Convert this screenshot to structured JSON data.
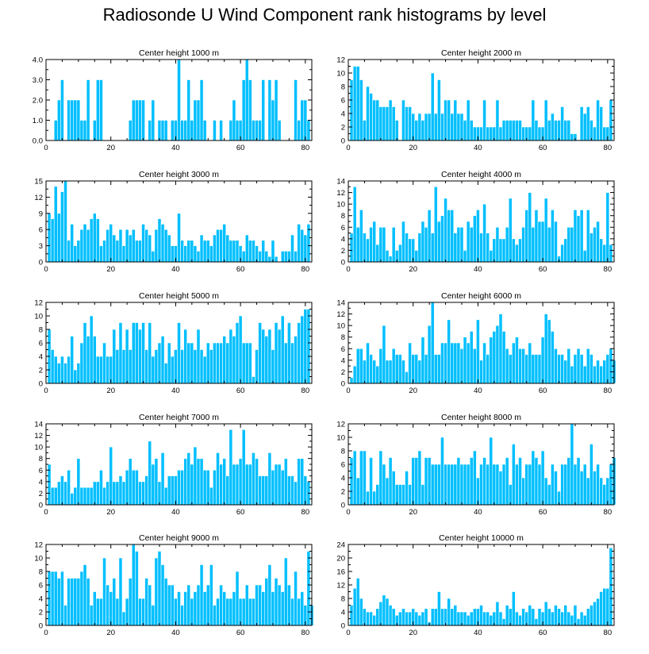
{
  "title": "Radiosonde U Wind Component rank histograms by level",
  "colors": {
    "bar": "#00bfff",
    "bar_edge": "#ffffff",
    "axis": "#000000"
  },
  "chart_data": [
    {
      "type": "bar",
      "title": "Center height 1000 m",
      "xlim": [
        0,
        82
      ],
      "ylim": [
        0,
        4
      ],
      "xticks": [
        0,
        20,
        40,
        60,
        80
      ],
      "xtick_labels": [
        "0",
        "20",
        "40",
        "60",
        "80"
      ],
      "yticks": [
        0,
        1,
        2,
        3,
        4
      ],
      "ytick_labels": [
        "0.0",
        "1.0",
        "2.0",
        "3.0",
        "4.0"
      ],
      "x_start": 1,
      "values": [
        0,
        0,
        1,
        2,
        3,
        0,
        2,
        2,
        2,
        2,
        1,
        1,
        3,
        0,
        1,
        3,
        3,
        0,
        0,
        0,
        0,
        0,
        0,
        0,
        0,
        1,
        2,
        2,
        2,
        2,
        0,
        1,
        2,
        0,
        1,
        1,
        1,
        0,
        1,
        1,
        4,
        1,
        1,
        3,
        1,
        2,
        2,
        3,
        1,
        0,
        0,
        1,
        0,
        1,
        0,
        0,
        1,
        2,
        1,
        1,
        3,
        4,
        3,
        1,
        1,
        1,
        3,
        0,
        3,
        2,
        3,
        1,
        0,
        0,
        0,
        0,
        3,
        1,
        2,
        2,
        1,
        0
      ]
    },
    {
      "type": "bar",
      "title": "Center height 2000 m",
      "xlim": [
        0,
        82
      ],
      "ylim": [
        0,
        12
      ],
      "xticks": [
        0,
        20,
        40,
        60,
        80
      ],
      "xtick_labels": [
        "0",
        "20",
        "40",
        "60",
        "80"
      ],
      "yticks": [
        0,
        2,
        4,
        6,
        8,
        10,
        12
      ],
      "ytick_labels": [
        "0",
        "2",
        "4",
        "6",
        "8",
        "10",
        "12"
      ],
      "x_start": 1,
      "values": [
        9,
        11,
        11,
        9,
        3,
        8,
        7,
        6,
        6,
        5,
        5,
        5,
        6,
        5,
        3,
        0,
        6,
        5,
        5,
        4,
        3,
        4,
        3,
        4,
        4,
        10,
        4,
        9,
        4,
        6,
        6,
        4,
        6,
        4,
        4,
        3,
        6,
        3,
        2,
        2,
        2,
        6,
        2,
        2,
        2,
        6,
        2,
        3,
        3,
        3,
        3,
        3,
        3,
        2,
        2,
        2,
        6,
        3,
        2,
        2,
        6,
        3,
        4,
        3,
        3,
        5,
        3,
        3,
        1,
        1,
        0,
        5,
        4,
        5,
        3,
        2,
        6,
        5,
        2,
        2,
        6,
        0
      ]
    },
    {
      "type": "bar",
      "title": "Center height 3000 m",
      "xlim": [
        0,
        82
      ],
      "ylim": [
        0,
        15
      ],
      "xticks": [
        0,
        20,
        40,
        60,
        80
      ],
      "xtick_labels": [
        "0",
        "20",
        "40",
        "60",
        "80"
      ],
      "yticks": [
        0,
        3,
        6,
        9,
        12,
        15
      ],
      "ytick_labels": [
        "0",
        "3",
        "6",
        "9",
        "12",
        "15"
      ],
      "x_start": 1,
      "values": [
        9,
        8,
        14,
        9,
        13,
        15,
        4,
        7,
        3,
        4,
        6,
        7,
        6,
        8,
        9,
        8,
        3,
        4,
        6,
        7,
        5,
        4,
        6,
        3,
        6,
        5,
        6,
        4,
        4,
        7,
        6,
        5,
        2,
        6,
        8,
        7,
        6,
        5,
        3,
        3,
        9,
        4,
        3,
        4,
        4,
        3,
        2,
        5,
        4,
        4,
        3,
        5,
        6,
        6,
        7,
        5,
        4,
        4,
        4,
        3,
        2,
        5,
        4,
        4,
        3,
        2,
        4,
        2,
        1,
        4,
        1,
        0,
        2,
        2,
        2,
        5,
        2,
        7,
        6,
        5,
        7,
        0
      ]
    },
    {
      "type": "bar",
      "title": "Center height 4000 m",
      "xlim": [
        0,
        82
      ],
      "ylim": [
        0,
        14
      ],
      "xticks": [
        0,
        20,
        40,
        60,
        80
      ],
      "xtick_labels": [
        "0",
        "20",
        "40",
        "60",
        "80"
      ],
      "yticks": [
        0,
        2,
        4,
        6,
        8,
        10,
        12,
        14
      ],
      "ytick_labels": [
        "0",
        "2",
        "4",
        "6",
        "8",
        "10",
        "12",
        "14"
      ],
      "x_start": 1,
      "values": [
        5,
        13,
        6,
        9,
        5,
        4,
        6,
        7,
        3,
        6,
        6,
        2,
        1,
        6,
        2,
        3,
        7,
        5,
        4,
        4,
        2,
        5,
        7,
        6,
        9,
        5,
        13,
        7,
        8,
        11,
        9,
        9,
        5,
        6,
        6,
        2,
        7,
        6,
        8,
        9,
        5,
        10,
        5,
        2,
        4,
        6,
        4,
        4,
        6,
        11,
        4,
        3,
        4,
        6,
        9,
        12,
        6,
        9,
        7,
        7,
        11,
        6,
        9,
        7,
        1,
        3,
        4,
        6,
        6,
        9,
        8,
        9,
        2,
        9,
        5,
        6,
        7,
        4,
        3,
        12,
        3,
        0
      ]
    },
    {
      "type": "bar",
      "title": "Center height 5000 m",
      "xlim": [
        0,
        82
      ],
      "ylim": [
        0,
        12
      ],
      "xticks": [
        0,
        20,
        40,
        60,
        80
      ],
      "xtick_labels": [
        "0",
        "20",
        "40",
        "60",
        "80"
      ],
      "yticks": [
        0,
        2,
        4,
        6,
        8,
        10,
        12
      ],
      "ytick_labels": [
        "0",
        "2",
        "4",
        "6",
        "8",
        "10",
        "12"
      ],
      "x_start": 1,
      "values": [
        8,
        5,
        4,
        3,
        4,
        3,
        4,
        7,
        2,
        3,
        6,
        9,
        7,
        10,
        7,
        4,
        4,
        6,
        4,
        4,
        8,
        5,
        9,
        5,
        8,
        5,
        9,
        9,
        8,
        9,
        5,
        9,
        4,
        5,
        6,
        7,
        3,
        6,
        4,
        5,
        9,
        5,
        8,
        6,
        6,
        5,
        8,
        5,
        4,
        6,
        5,
        6,
        6,
        6,
        7,
        6,
        8,
        7,
        9,
        10,
        6,
        6,
        6,
        1,
        5,
        9,
        8,
        7,
        8,
        5,
        9,
        8,
        10,
        6,
        9,
        6,
        7,
        9,
        10,
        11,
        11,
        0
      ]
    },
    {
      "type": "bar",
      "title": "Center height 6000 m",
      "xlim": [
        0,
        82
      ],
      "ylim": [
        0,
        14
      ],
      "xticks": [
        0,
        20,
        40,
        60,
        80
      ],
      "xtick_labels": [
        "0",
        "20",
        "40",
        "60",
        "80"
      ],
      "yticks": [
        0,
        2,
        4,
        6,
        8,
        10,
        12,
        14
      ],
      "ytick_labels": [
        "0",
        "2",
        "4",
        "6",
        "8",
        "10",
        "12",
        "14"
      ],
      "x_start": 1,
      "values": [
        1,
        3,
        6,
        6,
        4,
        7,
        5,
        4,
        3,
        6,
        10,
        4,
        4,
        6,
        5,
        5,
        4,
        2,
        7,
        5,
        5,
        4,
        8,
        5,
        10,
        14,
        5,
        5,
        7,
        7,
        11,
        7,
        7,
        7,
        6,
        8,
        7,
        9,
        6,
        11,
        4,
        7,
        5,
        8,
        9,
        10,
        12,
        9,
        6,
        5,
        7,
        8,
        6,
        6,
        5,
        7,
        5,
        5,
        5,
        8,
        12,
        11,
        9,
        6,
        5,
        5,
        4,
        6,
        3,
        5,
        6,
        5,
        3,
        6,
        5,
        3,
        4,
        3,
        4,
        5,
        6,
        4
      ]
    },
    {
      "type": "bar",
      "title": "Center height 7000 m",
      "xlim": [
        0,
        82
      ],
      "ylim": [
        0,
        14
      ],
      "xticks": [
        0,
        20,
        40,
        60,
        80
      ],
      "xtick_labels": [
        "0",
        "20",
        "40",
        "60",
        "80"
      ],
      "yticks": [
        0,
        2,
        4,
        6,
        8,
        10,
        12,
        14
      ],
      "ytick_labels": [
        "0",
        "2",
        "4",
        "6",
        "8",
        "10",
        "12",
        "14"
      ],
      "x_start": 1,
      "values": [
        7,
        3,
        3,
        4,
        5,
        4,
        6,
        2,
        3,
        8,
        3,
        3,
        3,
        3,
        4,
        4,
        6,
        3,
        4,
        10,
        4,
        4,
        5,
        4,
        6,
        8,
        6,
        6,
        4,
        4,
        5,
        11,
        7,
        8,
        4,
        9,
        3,
        5,
        5,
        5,
        6,
        6,
        8,
        9,
        7,
        10,
        8,
        8,
        6,
        6,
        3,
        6,
        9,
        7,
        8,
        5,
        13,
        7,
        7,
        8,
        13,
        7,
        7,
        9,
        8,
        5,
        5,
        5,
        9,
        6,
        7,
        7,
        6,
        8,
        5,
        5,
        4,
        8,
        8,
        5,
        4,
        0
      ]
    },
    {
      "type": "bar",
      "title": "Center height 8000 m",
      "xlim": [
        0,
        82
      ],
      "ylim": [
        0,
        12
      ],
      "xticks": [
        0,
        20,
        40,
        60,
        80
      ],
      "xtick_labels": [
        "0",
        "20",
        "40",
        "60",
        "80"
      ],
      "yticks": [
        0,
        2,
        4,
        6,
        8,
        10,
        12
      ],
      "ytick_labels": [
        "0",
        "2",
        "4",
        "6",
        "8",
        "10",
        "12"
      ],
      "x_start": 1,
      "values": [
        7,
        8,
        4,
        8,
        8,
        2,
        7,
        2,
        3,
        8,
        6,
        4,
        7,
        5,
        3,
        3,
        3,
        5,
        3,
        7,
        7,
        8,
        3,
        7,
        7,
        6,
        6,
        6,
        10,
        6,
        6,
        6,
        6,
        7,
        6,
        6,
        6,
        7,
        8,
        4,
        6,
        7,
        6,
        10,
        6,
        6,
        5,
        6,
        7,
        3,
        9,
        6,
        7,
        4,
        6,
        6,
        8,
        7,
        6,
        8,
        4,
        3,
        6,
        5,
        2,
        6,
        6,
        7,
        12,
        6,
        7,
        5,
        6,
        4,
        9,
        5,
        6,
        4,
        3,
        4,
        6,
        7
      ]
    },
    {
      "type": "bar",
      "title": "Center height 9000 m",
      "xlim": [
        0,
        82
      ],
      "ylim": [
        0,
        12
      ],
      "xticks": [
        0,
        20,
        40,
        60,
        80
      ],
      "xtick_labels": [
        "0",
        "20",
        "40",
        "60",
        "80"
      ],
      "yticks": [
        0,
        2,
        4,
        6,
        8,
        10,
        12
      ],
      "ytick_labels": [
        "0",
        "2",
        "4",
        "6",
        "8",
        "10",
        "12"
      ],
      "x_start": 1,
      "values": [
        8,
        8,
        8,
        7,
        8,
        3,
        7,
        7,
        7,
        7,
        8,
        9,
        7,
        3,
        5,
        4,
        4,
        10,
        6,
        5,
        7,
        4,
        10,
        2,
        4,
        7,
        12,
        11,
        4,
        4,
        7,
        6,
        3,
        10,
        11,
        9,
        7,
        6,
        6,
        4,
        5,
        3,
        5,
        6,
        4,
        5,
        6,
        9,
        5,
        6,
        9,
        3,
        4,
        6,
        5,
        4,
        4,
        5,
        8,
        4,
        4,
        6,
        4,
        4,
        6,
        6,
        5,
        7,
        9,
        5,
        7,
        6,
        5,
        10,
        6,
        4,
        8,
        4,
        5,
        3,
        11,
        3
      ]
    },
    {
      "type": "bar",
      "title": "Center height 10000 m",
      "xlim": [
        0,
        82
      ],
      "ylim": [
        0,
        24
      ],
      "xticks": [
        0,
        20,
        40,
        60,
        80
      ],
      "xtick_labels": [
        "0",
        "20",
        "40",
        "60",
        "80"
      ],
      "yticks": [
        0,
        4,
        8,
        12,
        16,
        20,
        24
      ],
      "ytick_labels": [
        "0",
        "4",
        "8",
        "12",
        "16",
        "20",
        "24"
      ],
      "x_start": 1,
      "values": [
        6,
        11,
        14,
        8,
        5,
        4,
        4,
        3,
        5,
        7,
        9,
        8,
        6,
        5,
        3,
        4,
        5,
        4,
        4,
        5,
        4,
        3,
        4,
        5,
        1,
        5,
        5,
        10,
        5,
        5,
        8,
        5,
        6,
        4,
        4,
        4,
        3,
        4,
        5,
        5,
        6,
        4,
        4,
        3,
        4,
        7,
        4,
        2,
        6,
        5,
        10,
        4,
        3,
        5,
        4,
        6,
        5,
        2,
        5,
        4,
        7,
        5,
        4,
        6,
        5,
        4,
        6,
        4,
        3,
        6,
        2,
        4,
        3,
        5,
        6,
        7,
        8,
        10,
        11,
        11,
        23,
        0
      ]
    }
  ]
}
